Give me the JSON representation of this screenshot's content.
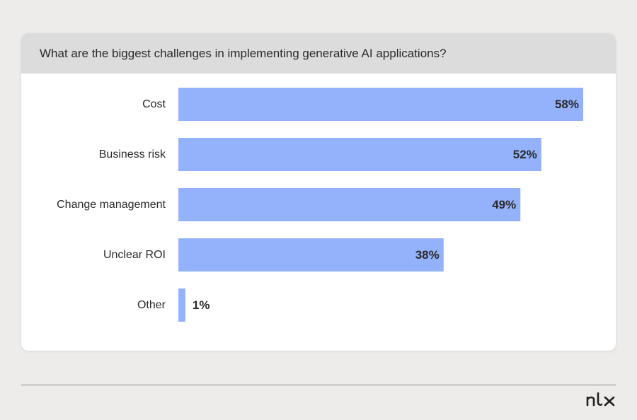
{
  "header": {
    "question": "What are the biggest challenges in implementing generative AI applications?"
  },
  "colors": {
    "bar": "#94b2fb",
    "label": "#2a2a2a",
    "background": "#edecea",
    "header_bg": "#dcdcdc",
    "card_bg": "#ffffff"
  },
  "brand": {
    "logo_text": "nlx",
    "logo_icon": "nlx-logo-icon"
  },
  "chart_data": {
    "type": "bar",
    "orientation": "horizontal",
    "title": "What are the biggest challenges in implementing generative AI applications?",
    "categories": [
      "Cost",
      "Business risk",
      "Change management",
      "Unclear ROI",
      "Other"
    ],
    "values": [
      58,
      52,
      49,
      38,
      1
    ],
    "value_labels": [
      "58%",
      "52%",
      "49%",
      "38%",
      "1%"
    ],
    "unit": "%",
    "xlim": [
      0,
      58
    ],
    "grid": false,
    "legend": "none"
  }
}
